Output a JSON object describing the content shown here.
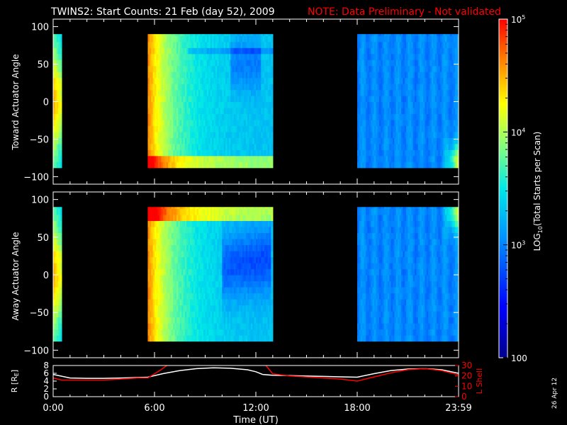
{
  "header": {
    "title": "TWINS2: Start Counts: 21 Feb (day  52), 2009",
    "note": "NOTE: Data Preliminary - Not validated"
  },
  "footer": {
    "date_stamp": "26 Apr 12"
  },
  "colorbar": {
    "label_main": "LOG",
    "label_sub": "10",
    "label_rest": "(Total Starts per Scan)",
    "scale": "log",
    "range": [
      100,
      100000
    ],
    "ticks": [
      {
        "value": 100,
        "label": "100"
      },
      {
        "value": 1000,
        "label": "10",
        "exp": "3"
      },
      {
        "value": 10000,
        "label": "10",
        "exp": "4"
      },
      {
        "value": 100000,
        "label": "10",
        "exp": "5"
      }
    ]
  },
  "chart_data": [
    {
      "type": "heatmap",
      "name": "toward",
      "ylabel": "Toward Actuator Angle",
      "xlim": [
        0,
        24
      ],
      "ylim": [
        -110,
        110
      ],
      "yticks": [
        -100,
        -50,
        0,
        50,
        100
      ],
      "data_segments_hours": [
        [
          0,
          0.5
        ],
        [
          5.6,
          12.9
        ],
        [
          18.0,
          24.0
        ]
      ],
      "angle_range": [
        -88,
        90
      ]
    },
    {
      "type": "heatmap",
      "name": "away",
      "ylabel": "Away Actuator Angle",
      "xlim": [
        0,
        24
      ],
      "ylim": [
        -110,
        110
      ],
      "yticks": [
        -100,
        -50,
        0,
        50,
        100
      ],
      "data_segments_hours": [
        [
          0,
          0.5
        ],
        [
          5.6,
          12.9
        ],
        [
          18.0,
          24.0
        ]
      ],
      "angle_range": [
        -88,
        90
      ]
    },
    {
      "type": "line",
      "name": "orbit",
      "xlabel": "Time (UT)",
      "xlim": [
        0,
        24
      ],
      "xticks": [
        {
          "value": 0,
          "label": "0:00"
        },
        {
          "value": 6,
          "label": "6:00"
        },
        {
          "value": 12,
          "label": "12:00"
        },
        {
          "value": 18,
          "label": "18:00"
        },
        {
          "value": 24,
          "label": "23:59"
        }
      ],
      "left_axis": {
        "label": "R [R",
        "label_sub": "E",
        "label_end": "]",
        "ylim": [
          0,
          8
        ],
        "ticks": [
          0,
          2,
          4,
          6,
          8
        ]
      },
      "right_axis": {
        "label": "L Shell",
        "ylim": [
          0,
          30
        ],
        "ticks": [
          0,
          10,
          20,
          30
        ]
      },
      "series": [
        {
          "name": "R",
          "color": "#ffffff",
          "axis": "left",
          "x": [
            0,
            1,
            2,
            3,
            4,
            5,
            5.6,
            6.5,
            7.5,
            8.5,
            9.5,
            10.5,
            11.5,
            12,
            12.4,
            13,
            14,
            15,
            16,
            17,
            18,
            19,
            20,
            21,
            22,
            23,
            24
          ],
          "y": [
            5.7,
            4.8,
            4.7,
            4.7,
            4.8,
            4.9,
            5.0,
            5.9,
            6.7,
            7.2,
            7.4,
            7.3,
            6.9,
            6.4,
            5.7,
            5.5,
            5.4,
            5.3,
            5.2,
            5.1,
            5.0,
            5.9,
            6.7,
            7.1,
            7.2,
            6.9,
            6.0
          ]
        },
        {
          "name": "L Shell",
          "color": "#ff0000",
          "axis": "right",
          "x": [
            0,
            0.5,
            1,
            2,
            3,
            4,
            5,
            5.6,
            6.3,
            6.9,
            7.2,
            12.3,
            12.5,
            13,
            14,
            15,
            16,
            17,
            18,
            19,
            20,
            21,
            22,
            23,
            24
          ],
          "y": [
            18,
            16,
            16,
            16,
            16,
            17,
            18,
            18,
            25,
            32,
            null,
            null,
            32,
            22,
            20,
            19,
            18,
            17,
            15,
            19,
            23,
            26,
            27,
            25,
            21
          ]
        }
      ]
    }
  ]
}
